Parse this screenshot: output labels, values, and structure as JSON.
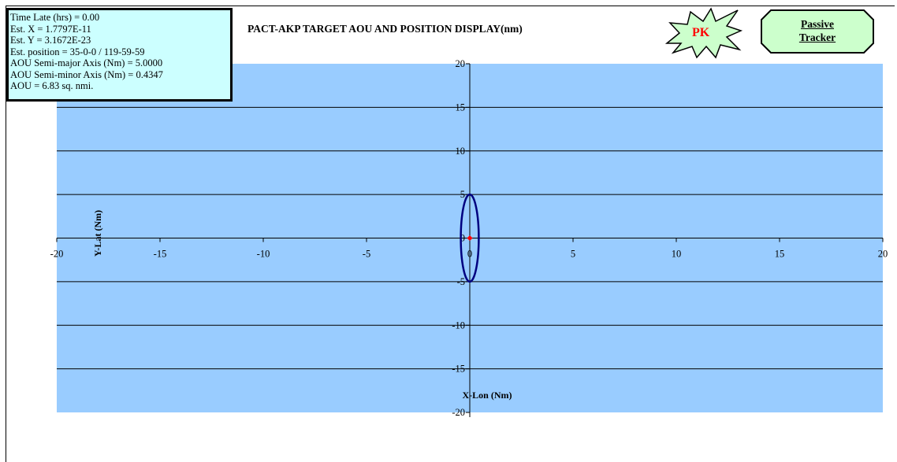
{
  "info": {
    "lines": [
      "Time Late (hrs) = 0.00",
      "Est. X = 1.7797E-11",
      "Est. Y = 3.1672E-23",
      "Est. position = 35-0-0 / 119-59-59",
      "AOU Semi-major Axis (Nm) = 5.0000",
      "AOU Semi-minor Axis (Nm) = 0.4347",
      "AOU =  6.83 sq. nmi."
    ]
  },
  "badge": {
    "text": "PK",
    "color": "#ff0000",
    "fill": "#ccffcc"
  },
  "tracker_button": {
    "line1": "Passive",
    "line2": "Tracker",
    "fill": "#ccffcc"
  },
  "colors": {
    "plot_bg": "#99ccff",
    "ellipse": "#000080",
    "point": "#ff0000"
  },
  "chart_data": {
    "type": "scatter",
    "title": "PACT-AKP TARGET AOU AND POSITION DISPLAY(nm)",
    "xlabel": "X-Lon (Nm)",
    "ylabel": "Y-Lat (Nm)",
    "xlim": [
      -20,
      20
    ],
    "ylim": [
      -20,
      20
    ],
    "xticks": [
      -20,
      -15,
      -10,
      -5,
      0,
      5,
      10,
      15,
      20
    ],
    "yticks": [
      20,
      15,
      10,
      5,
      0,
      -5,
      -10,
      -15,
      -20
    ],
    "grid": "horizontal",
    "series": [
      {
        "kind": "ellipse",
        "center": [
          0,
          0
        ],
        "semi_major_y": 5.0,
        "semi_minor_x": 0.4347
      },
      {
        "kind": "point",
        "points": [
          [
            0,
            0
          ]
        ]
      }
    ]
  }
}
